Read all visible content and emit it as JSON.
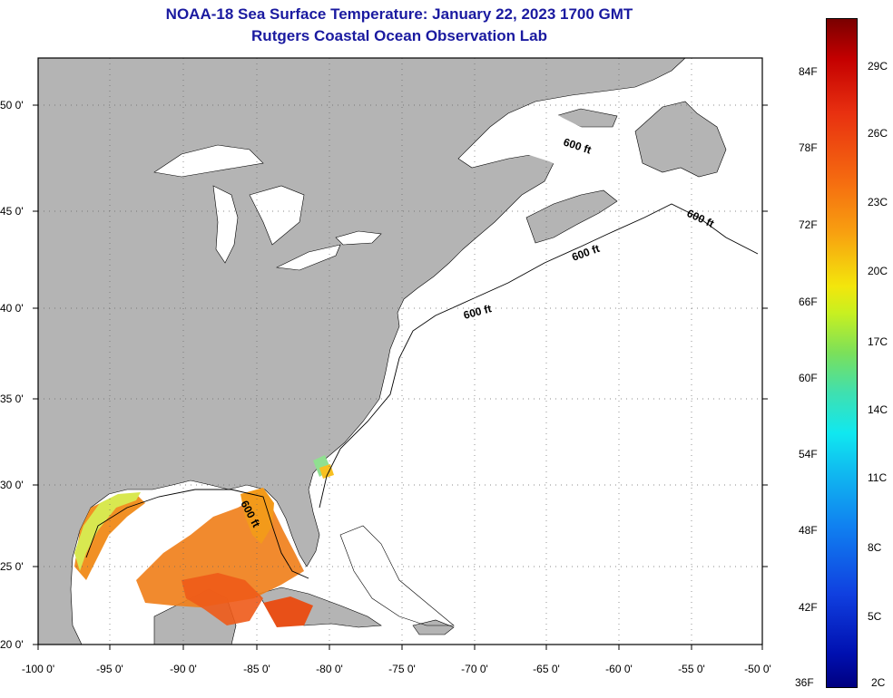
{
  "title_line1": "NOAA-18 Sea Surface Temperature:  January 22, 2023 1700 GMT",
  "title_line2": "Rutgers Coastal Ocean Observation Lab",
  "axes": {
    "lat_labels": [
      "50 0'",
      "45 0'",
      "40 0'",
      "35 0'",
      "30 0'",
      "25 0'",
      "20 0'"
    ],
    "lon_labels": [
      "-100 0'",
      "-95 0'",
      "-90 0'",
      "-85 0'",
      "-80 0'",
      "-75 0'",
      "-70 0'",
      "-65 0'",
      "-60 0'",
      "-55 0'",
      "-50 0'"
    ]
  },
  "contour_labels": [
    "600 ft",
    "600 ft",
    "600 ft",
    "600 ft",
    "600 ft"
  ],
  "colorbar": {
    "fahrenheit": [
      "84F",
      "78F",
      "72F",
      "66F",
      "60F",
      "54F",
      "48F",
      "42F",
      "36F"
    ],
    "celsius": [
      "29C",
      "26C",
      "23C",
      "20C",
      "17C",
      "14C",
      "11C",
      "8C",
      "5C",
      "2C"
    ]
  },
  "colors": {
    "land": "#b4b4b4",
    "ocean": "#ffffff",
    "title": "#1a1aa0"
  }
}
